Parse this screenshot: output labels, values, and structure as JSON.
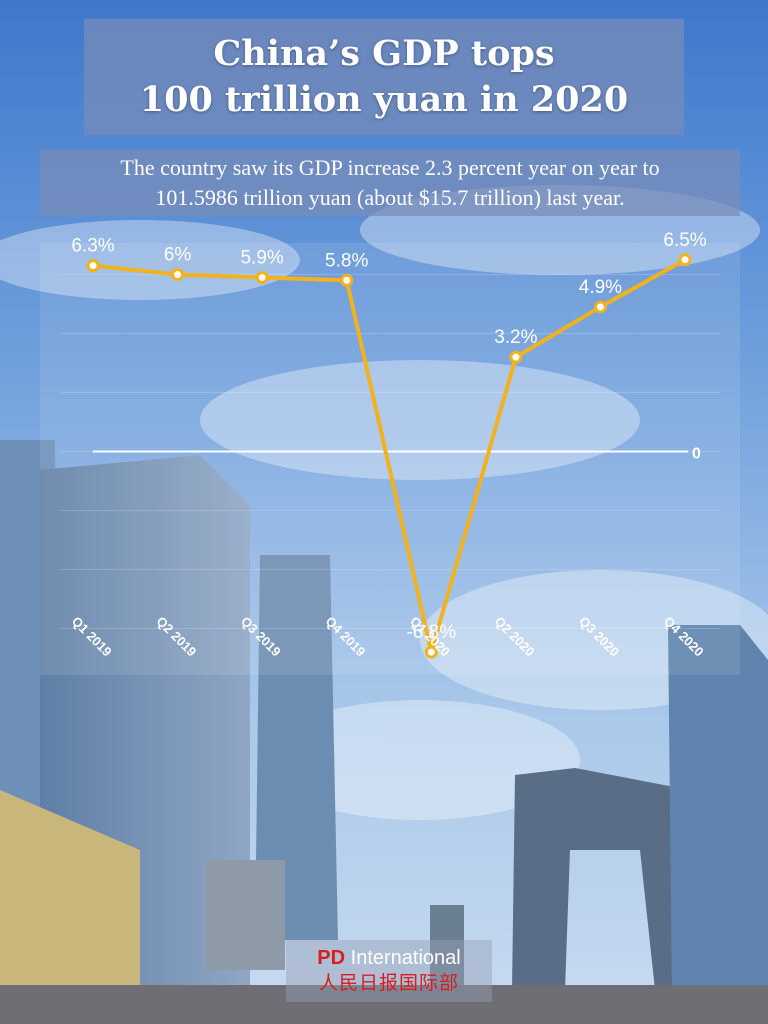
{
  "header": {
    "title_line1": "China’s GDP tops",
    "title_line2": "100 trillion yuan in 2020",
    "subtitle_line1": "The country saw its GDP increase 2.3 percent year on year to",
    "subtitle_line2": "101.5986 trillion yuan (about $15.7 trillion) last year."
  },
  "chart_data": {
    "type": "line",
    "categories": [
      "Q1 2019",
      "Q2 2019",
      "Q3 2019",
      "Q4 2019",
      "Q1 2020",
      "Q2 2020",
      "Q3 2020",
      "Q4 2020"
    ],
    "series": [
      {
        "values": [
          6.3,
          6,
          5.9,
          5.8,
          -6.8,
          3.2,
          4.9,
          6.5
        ]
      }
    ],
    "data_labels": [
      "6.3%",
      "6%",
      "5.9%",
      "5.8%",
      "-6.8%",
      "3.2%",
      "4.9%",
      "6.5%"
    ],
    "zero_line_label": "0",
    "ylim": [
      -7,
      7
    ],
    "line_color": "#f2b21d",
    "grid": true
  },
  "watermark": {
    "brand_pd": "PD",
    "brand_intl": " International",
    "brand_cn": "人民日报国际部"
  }
}
